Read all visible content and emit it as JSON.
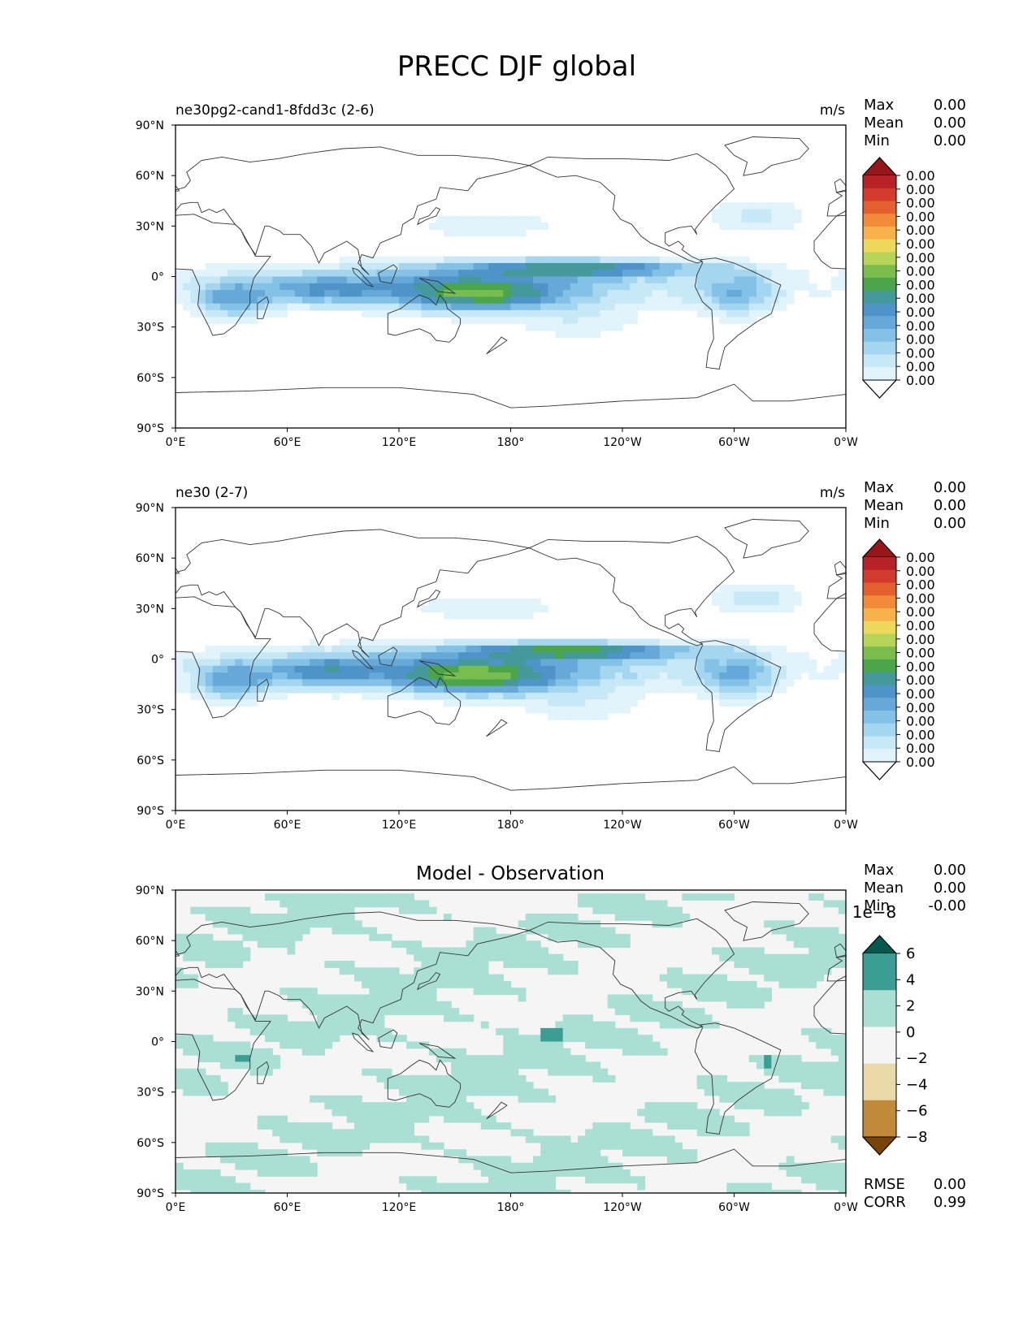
{
  "figure": {
    "title": "PRECC DJF global"
  },
  "chart_data": [
    {
      "type": "heatmap",
      "panel": "test",
      "title_left": "ne30pg2-cand1-8fdd3c (2-6)",
      "title_right": "m/s",
      "stats": [
        {
          "label": "Max",
          "value": "0.00"
        },
        {
          "label": "Mean",
          "value": "0.00"
        },
        {
          "label": "Min",
          "value": "0.00"
        }
      ],
      "colorbar": {
        "tick_labels": [
          "0.00",
          "0.00",
          "0.00",
          "0.00",
          "0.00",
          "0.00",
          "0.00",
          "0.00",
          "0.00",
          "0.00",
          "0.00",
          "0.00",
          "0.00",
          "0.00",
          "0.00",
          "0.00"
        ],
        "colors": [
          "#ffffff",
          "#e1f3fb",
          "#c6e8f7",
          "#a4d6f0",
          "#84c1e6",
          "#66a9d8",
          "#4f94c8",
          "#449a9a",
          "#4ba54a",
          "#78bd4e",
          "#b6d457",
          "#ecd95b",
          "#f7b24c",
          "#f18b3a",
          "#e4602f",
          "#d23a2b",
          "#b82126",
          "#961619"
        ],
        "extend": "both"
      },
      "xticks": [
        "0°E",
        "60°E",
        "120°E",
        "180°",
        "120°W",
        "60°W",
        "0°W"
      ],
      "yticks": [
        "90°N",
        "60°N",
        "30°N",
        "0°",
        "30°S",
        "60°S",
        "90°S"
      ],
      "field_scale": 1.0
    },
    {
      "type": "heatmap",
      "panel": "reference",
      "title_left": "ne30 (2-7)",
      "title_right": "m/s",
      "stats": [
        {
          "label": "Max",
          "value": "0.00"
        },
        {
          "label": "Mean",
          "value": "0.00"
        },
        {
          "label": "Min",
          "value": "0.00"
        }
      ],
      "colorbar": {
        "tick_labels": [
          "0.00",
          "0.00",
          "0.00",
          "0.00",
          "0.00",
          "0.00",
          "0.00",
          "0.00",
          "0.00",
          "0.00",
          "0.00",
          "0.00",
          "0.00",
          "0.00",
          "0.00",
          "0.00"
        ],
        "colors": [
          "#ffffff",
          "#e1f3fb",
          "#c6e8f7",
          "#a4d6f0",
          "#84c1e6",
          "#66a9d8",
          "#4f94c8",
          "#449a9a",
          "#4ba54a",
          "#78bd4e",
          "#b6d457",
          "#ecd95b",
          "#f7b24c",
          "#f18b3a",
          "#e4602f",
          "#d23a2b",
          "#b82126",
          "#961619"
        ],
        "extend": "both"
      },
      "xticks": [
        "0°E",
        "60°E",
        "120°E",
        "180°",
        "120°W",
        "60°W",
        "0°W"
      ],
      "yticks": [
        "90°N",
        "60°N",
        "30°N",
        "0°",
        "30°S",
        "60°S",
        "90°S"
      ],
      "field_scale": 1.05
    },
    {
      "type": "heatmap",
      "panel": "difference",
      "title_center": "Model - Observation",
      "stats": [
        {
          "label": "Max",
          "value": "0.00"
        },
        {
          "label": "Mean",
          "value": "0.00"
        },
        {
          "label": "Min",
          "value": "-0.00"
        }
      ],
      "colorbar": {
        "offset_label": "1e−8",
        "tick_labels": [
          "6",
          "4",
          "2",
          "0",
          "−2",
          "−4",
          "−6",
          "−8"
        ],
        "colors": [
          "#7a4409",
          "#c1893a",
          "#ead8a6",
          "#f4f5f4",
          "#aadfd6",
          "#3c9d92",
          "#01594d"
        ],
        "extend": "both"
      },
      "metrics": [
        {
          "label": "RMSE",
          "value": "0.00"
        },
        {
          "label": "CORR",
          "value": "0.99"
        }
      ],
      "xticks": [
        "0°E",
        "60°E",
        "120°E",
        "180°",
        "120°W",
        "60°W",
        "0°W"
      ],
      "yticks": [
        "90°N",
        "60°N",
        "30°N",
        "0°",
        "30°S",
        "60°S",
        "90°S"
      ]
    }
  ]
}
